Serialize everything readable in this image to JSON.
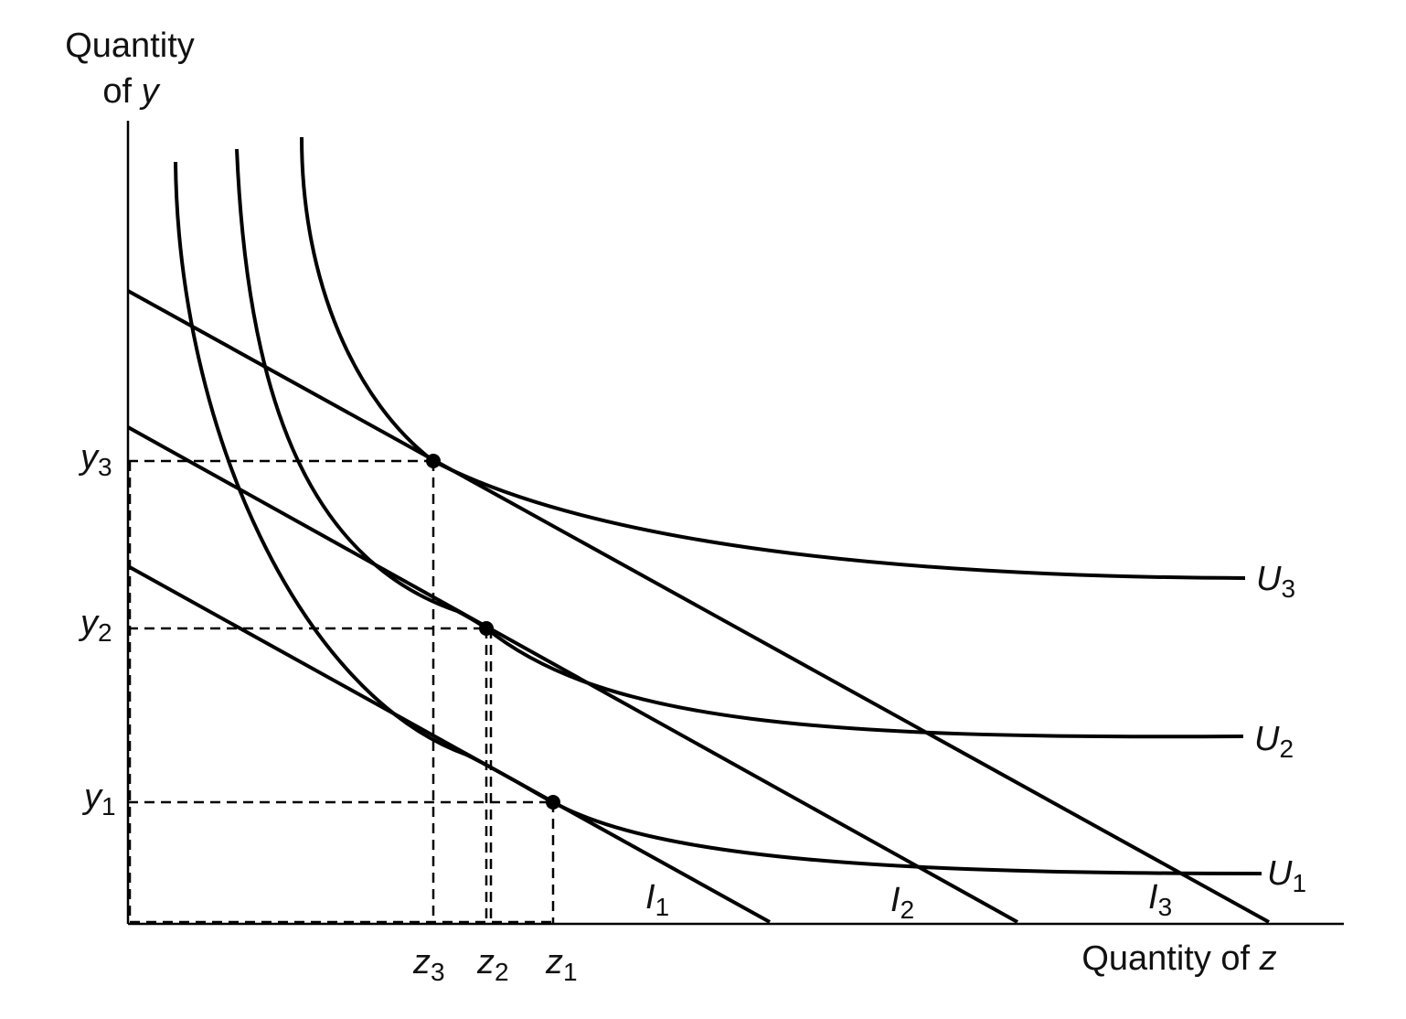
{
  "axes": {
    "y_label_line1": "Quantity",
    "y_label_line2_prefix": "of ",
    "y_label_line2_var": "y",
    "x_label_prefix": "Quantity of ",
    "x_label_var": "z"
  },
  "y_ticks": [
    {
      "var": "y",
      "sub": "3"
    },
    {
      "var": "y",
      "sub": "2"
    },
    {
      "var": "y",
      "sub": "1"
    }
  ],
  "x_ticks": [
    {
      "var": "z",
      "sub": "3"
    },
    {
      "var": "z",
      "sub": "2"
    },
    {
      "var": "z",
      "sub": "1"
    }
  ],
  "indifference_curves": [
    {
      "var": "U",
      "sub": "3"
    },
    {
      "var": "U",
      "sub": "2"
    },
    {
      "var": "U",
      "sub": "1"
    }
  ],
  "budget_lines": [
    {
      "var": "I",
      "sub": "1"
    },
    {
      "var": "I",
      "sub": "2"
    },
    {
      "var": "I",
      "sub": "3"
    }
  ]
}
